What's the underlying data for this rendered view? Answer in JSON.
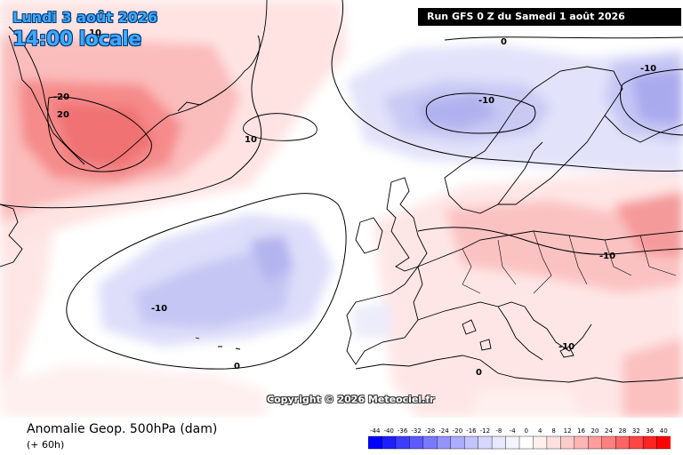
{
  "header": {
    "date_label": "Lundi 3 août 2026",
    "time_label": "14:00 locale",
    "run_label": "Run GFS 0 Z du Samedi 1 août 2026"
  },
  "map": {
    "contour_labels": [
      "-10",
      "-10",
      "-10",
      "-10",
      "-10",
      "0",
      "0",
      "0",
      "10",
      "10",
      "-20",
      "20"
    ],
    "colors": {
      "land_lines": "#000000",
      "positive_weak": "#ffdede",
      "positive_mid": "#fbb3b3",
      "positive_strong": "#f07a7a",
      "negative_weak": "#dcdcfb",
      "negative_mid": "#b8b8f2",
      "negative_strong": "#a3a3ee"
    }
  },
  "copyright": "Copyright © 2026 Meteociel.fr",
  "legend": {
    "title": "Anomalie Geop. 500hPa (dam)",
    "subtitle": "(+ 60h)",
    "scale_values": [
      "-44",
      "-40",
      "-36",
      "-32",
      "-28",
      "-24",
      "-20",
      "-16",
      "-12",
      "-8",
      "-4",
      "0",
      "4",
      "8",
      "12",
      "16",
      "20",
      "24",
      "28",
      "32",
      "36",
      "40"
    ],
    "scale_colors": [
      "#0000ff",
      "#1e1eff",
      "#3d3dff",
      "#5b5bff",
      "#7979ff",
      "#9494ff",
      "#adadff",
      "#c3c3ff",
      "#d8d8ff",
      "#e8e8ff",
      "#f4f4ff",
      "#ffffff",
      "#fff0f0",
      "#ffe0e0",
      "#ffcccc",
      "#ffb5b5",
      "#ff9c9c",
      "#ff8080",
      "#ff6464",
      "#ff4545",
      "#ff2424",
      "#ff0000"
    ]
  }
}
